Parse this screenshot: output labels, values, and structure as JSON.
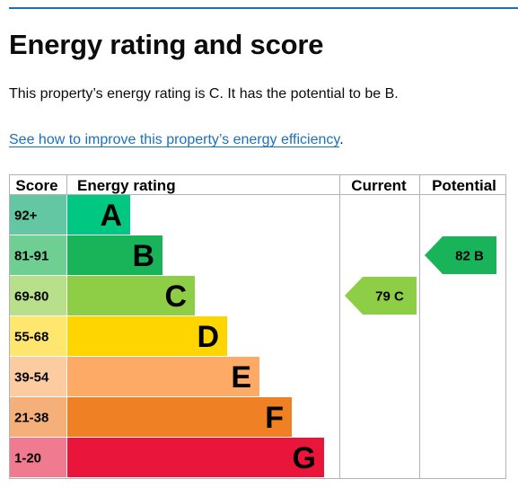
{
  "page": {
    "title": "Energy rating and score",
    "summary": "This property’s energy rating is C. It has the potential to be B.",
    "link_text": "See how to improve this property’s energy efficiency",
    "link_suffix": "."
  },
  "chart_data": {
    "type": "bar",
    "headers": {
      "score": "Score",
      "rating": "Energy rating",
      "current": "Current",
      "potential": "Potential"
    },
    "bands": [
      {
        "letter": "A",
        "range": "92+",
        "color": "#00c781",
        "score_color": "#64c7a3"
      },
      {
        "letter": "B",
        "range": "81-91",
        "color": "#19b459",
        "score_color": "#6fcf93"
      },
      {
        "letter": "C",
        "range": "69-80",
        "color": "#8dce46",
        "score_color": "#b8e08a"
      },
      {
        "letter": "D",
        "range": "55-68",
        "color": "#ffd500",
        "score_color": "#ffe66e"
      },
      {
        "letter": "E",
        "range": "39-54",
        "color": "#fcaa65",
        "score_color": "#fdcba0"
      },
      {
        "letter": "F",
        "range": "21-38",
        "color": "#ef8023",
        "score_color": "#f5b07a"
      },
      {
        "letter": "G",
        "range": "1-20",
        "color": "#e9153b",
        "score_color": "#f07a8f"
      }
    ],
    "current": {
      "score": 79,
      "letter": "C",
      "label": "79 C",
      "color": "#8dce46"
    },
    "potential": {
      "score": 82,
      "letter": "B",
      "label": "82 B",
      "color": "#19b459"
    }
  }
}
